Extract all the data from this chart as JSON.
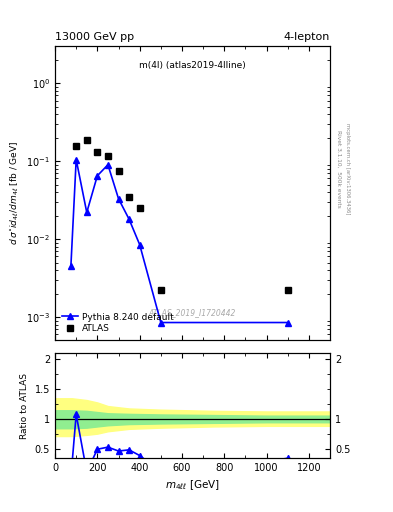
{
  "title_left": "13000 GeV pp",
  "title_right": "4-lepton",
  "hist_label": "m(4l) (atlas2019-4lline)",
  "watermark": "ATLAS_2019_I1720442",
  "rivet_label": "Rivet 3.1.10,  500k events",
  "mcplots_label": "mcplots.cern.ch [arXiv:1306.3436]",
  "ylabel_main": "dσ°id_{4ℓ}/dm_{4ℓ} [fb / GeV]",
  "ylabel_ratio": "Ratio to ATLAS",
  "xlabel": "m_{4ℓℓ} [GeV]",
  "atlas_x": [
    100,
    150,
    200,
    250,
    300,
    350,
    400,
    500,
    1100
  ],
  "atlas_y": [
    0.155,
    0.185,
    0.13,
    0.115,
    0.075,
    0.035,
    0.025,
    0.0022,
    0.0022
  ],
  "pythia_x": [
    100,
    150,
    200,
    250,
    300,
    350,
    400,
    500,
    1100
  ],
  "pythia_y": [
    0.105,
    0.022,
    0.065,
    0.09,
    0.033,
    0.018,
    0.0085,
    0.00085,
    0.00085
  ],
  "pythia_x2": [
    75
  ],
  "pythia_y2": [
    0.0045
  ],
  "ratio_x": [
    75,
    100,
    150,
    200,
    250,
    300,
    350,
    400,
    500,
    600,
    650,
    1100
  ],
  "ratio_y": [
    0.029,
    1.08,
    0.12,
    0.5,
    0.535,
    0.47,
    0.49,
    0.395,
    0.12,
    0.115,
    0.115,
    0.35
  ],
  "band_x": [
    0,
    80,
    150,
    200,
    250,
    350,
    500,
    750,
    1000,
    1300
  ],
  "band_green_lo": [
    0.85,
    0.85,
    0.86,
    0.88,
    0.9,
    0.92,
    0.93,
    0.94,
    0.95,
    0.95
  ],
  "band_green_hi": [
    1.15,
    1.15,
    1.14,
    1.12,
    1.1,
    1.09,
    1.08,
    1.07,
    1.06,
    1.06
  ],
  "band_yellow_lo": [
    0.72,
    0.72,
    0.74,
    0.76,
    0.8,
    0.84,
    0.86,
    0.88,
    0.89,
    0.89
  ],
  "band_yellow_hi": [
    1.35,
    1.35,
    1.32,
    1.28,
    1.22,
    1.18,
    1.16,
    1.14,
    1.13,
    1.13
  ],
  "xlim": [
    0,
    1300
  ],
  "ylim_main": [
    0.0005,
    3.0
  ],
  "ylim_ratio": [
    0.35,
    2.1
  ],
  "atlas_color": "#000000",
  "pythia_color": "#0000ff",
  "atlas_marker": "s",
  "pythia_marker": "^",
  "green_color": "#90ee90",
  "yellow_color": "#ffff80"
}
